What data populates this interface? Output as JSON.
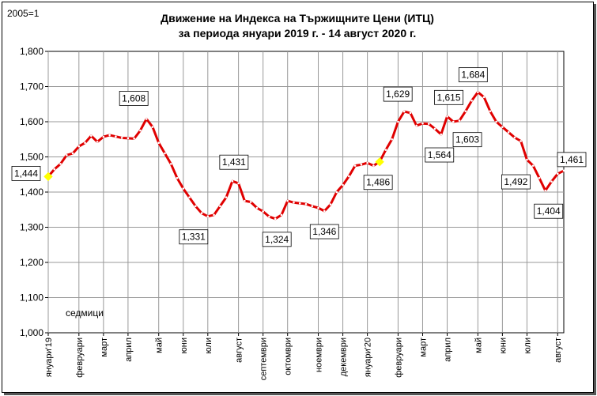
{
  "chart_data": {
    "type": "line",
    "title_line1": "Движение на Индекса на Тържищните Цени (ИТЦ)",
    "title_line2": "за периода януари 2019 г. - 14 август 2020 г.",
    "base_label": "2005=1",
    "xlabel": "седмици",
    "ylim": [
      1.0,
      1.8
    ],
    "yticks": [
      1.0,
      1.1,
      1.2,
      1.3,
      1.4,
      1.5,
      1.6,
      1.7,
      1.8
    ],
    "ytick_labels": [
      "1,000",
      "1,100",
      "1,200",
      "1,300",
      "1,400",
      "1,500",
      "1,600",
      "1,700",
      "1,800"
    ],
    "grid": true,
    "line_color": "#e00000",
    "marker_color": "#ffffff",
    "highlight_color": "#ffff00",
    "month_labels": [
      {
        "label": "януари'19",
        "week": 0
      },
      {
        "label": "февруари",
        "week": 5
      },
      {
        "label": "март",
        "week": 9
      },
      {
        "label": "април",
        "week": 13
      },
      {
        "label": "май",
        "week": 18
      },
      {
        "label": "юни",
        "week": 22
      },
      {
        "label": "юли",
        "week": 26
      },
      {
        "label": "август",
        "week": 31
      },
      {
        "label": "септември",
        "week": 35
      },
      {
        "label": "октомври",
        "week": 39
      },
      {
        "label": "ноември",
        "week": 44
      },
      {
        "label": "декември",
        "week": 48
      },
      {
        "label": "януари'20",
        "week": 52
      },
      {
        "label": "февруари",
        "week": 57
      },
      {
        "label": "март",
        "week": 61
      },
      {
        "label": "април",
        "week": 65
      },
      {
        "label": "май",
        "week": 70
      },
      {
        "label": "юни",
        "week": 74
      },
      {
        "label": "юли",
        "week": 78
      },
      {
        "label": "август",
        "week": 83
      }
    ],
    "values": [
      1.444,
      1.465,
      1.48,
      1.505,
      1.51,
      1.53,
      1.54,
      1.56,
      1.543,
      1.557,
      1.562,
      1.558,
      1.554,
      1.553,
      1.552,
      1.575,
      1.608,
      1.585,
      1.54,
      1.51,
      1.48,
      1.44,
      1.41,
      1.385,
      1.36,
      1.34,
      1.331,
      1.335,
      1.36,
      1.385,
      1.431,
      1.425,
      1.375,
      1.372,
      1.355,
      1.345,
      1.33,
      1.324,
      1.335,
      1.375,
      1.37,
      1.368,
      1.366,
      1.36,
      1.355,
      1.346,
      1.365,
      1.4,
      1.42,
      1.445,
      1.475,
      1.478,
      1.483,
      1.475,
      1.486,
      1.52,
      1.55,
      1.6,
      1.629,
      1.625,
      1.589,
      1.595,
      1.594,
      1.58,
      1.564,
      1.615,
      1.6,
      1.603,
      1.63,
      1.66,
      1.684,
      1.67,
      1.63,
      1.6,
      1.585,
      1.57,
      1.555,
      1.545,
      1.492,
      1.475,
      1.44,
      1.404,
      1.43,
      1.452,
      1.461
    ],
    "highlighted_points": [
      0,
      54
    ],
    "data_labels": [
      {
        "index": 0,
        "text": "1,444",
        "dx": -28,
        "dy": -4
      },
      {
        "index": 16,
        "text": "1,608",
        "dx": -16,
        "dy": -26
      },
      {
        "index": 26,
        "text": "1,331",
        "dx": -18,
        "dy": 26
      },
      {
        "index": 30,
        "text": "1,431",
        "dx": 2,
        "dy": -24
      },
      {
        "index": 37,
        "text": "1,324",
        "dx": 2,
        "dy": 26
      },
      {
        "index": 45,
        "text": "1,346",
        "dx": 0,
        "dy": 26
      },
      {
        "index": 54,
        "text": "1,486",
        "dx": -2,
        "dy": 26
      },
      {
        "index": 58,
        "text": "1,629",
        "dx": -8,
        "dy": -22
      },
      {
        "index": 64,
        "text": "1,564",
        "dx": -2,
        "dy": 26
      },
      {
        "index": 65,
        "text": "1,615",
        "dx": 2,
        "dy": -24
      },
      {
        "index": 67,
        "text": "1,603",
        "dx": 10,
        "dy": 24
      },
      {
        "index": 70,
        "text": "1,684",
        "dx": -6,
        "dy": -22
      },
      {
        "index": 78,
        "text": "1,492",
        "dx": -14,
        "dy": 28
      },
      {
        "index": 81,
        "text": "1,404",
        "dx": 4,
        "dy": 26
      },
      {
        "index": 84,
        "text": "1,461",
        "dx": 10,
        "dy": -14
      }
    ]
  }
}
